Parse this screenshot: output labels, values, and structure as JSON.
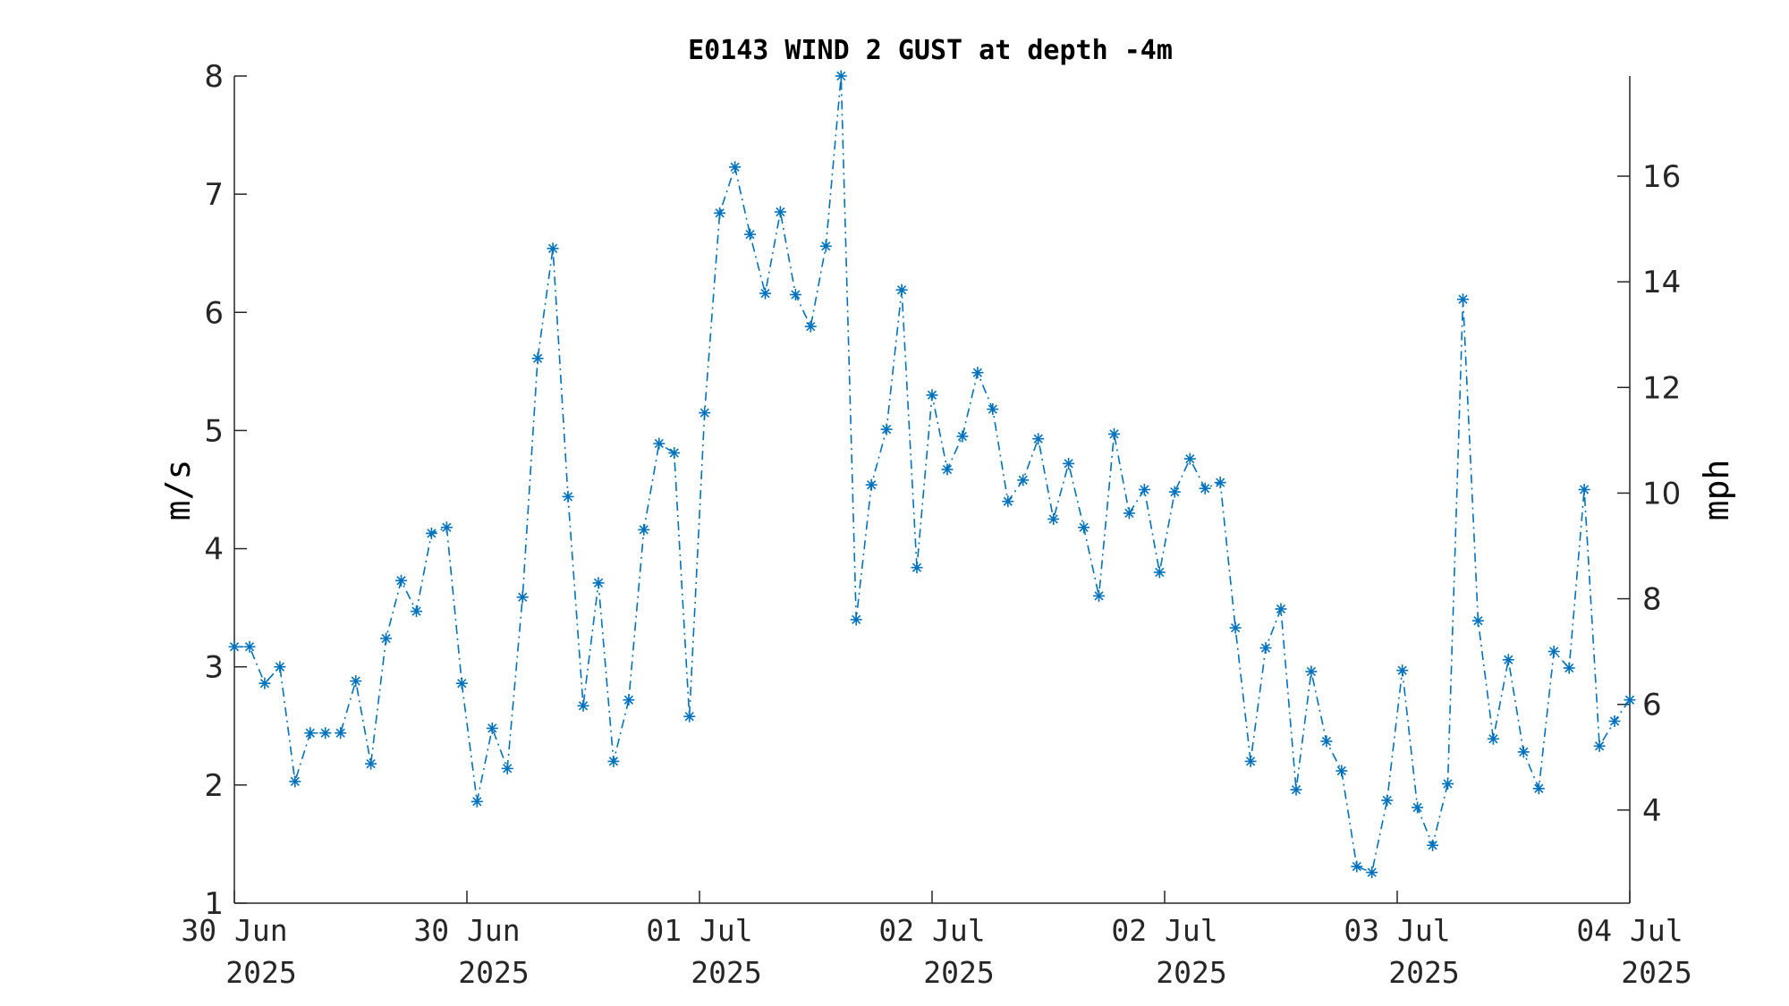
{
  "chart_data": {
    "type": "line",
    "title": "E0143 WIND 2 GUST at depth -4m",
    "ylabel": "m/s",
    "ylabel_right": "mph",
    "ylim": [
      1,
      8
    ],
    "yticks": [
      1,
      2,
      3,
      4,
      5,
      6,
      7,
      8
    ],
    "ylim_right": [
      2.237,
      17.896
    ],
    "yticks_right": [
      4,
      6,
      8,
      10,
      12,
      14,
      16
    ],
    "xticks": [
      {
        "day": "30 Jun",
        "year": "2025"
      },
      {
        "day": "30 Jun",
        "year": "2025"
      },
      {
        "day": "01 Jul",
        "year": "2025"
      },
      {
        "day": "02 Jul",
        "year": "2025"
      },
      {
        "day": "02 Jul",
        "year": "2025"
      },
      {
        "day": "03 Jul",
        "year": "2025"
      },
      {
        "day": "04 Jul",
        "year": "2025"
      }
    ],
    "grid": false,
    "marker": "asterisk",
    "line_style": "dash-dot",
    "color": "#0072BD",
    "series": [
      {
        "values": [
          3.17,
          3.17,
          2.86,
          3.0,
          2.03,
          2.44,
          2.44,
          2.44,
          2.88,
          2.18,
          3.24,
          3.73,
          3.47,
          4.13,
          4.18,
          2.86,
          1.86,
          2.48,
          2.14,
          3.59,
          5.61,
          6.54,
          4.44,
          2.67,
          3.71,
          2.2,
          2.72,
          4.16,
          4.89,
          4.81,
          2.58,
          5.15,
          6.84,
          7.23,
          6.66,
          6.16,
          6.85,
          6.15,
          5.88,
          6.56,
          8.0,
          3.4,
          4.54,
          5.01,
          6.19,
          3.84,
          5.3,
          4.67,
          4.95,
          5.49,
          5.18,
          4.4,
          4.58,
          4.93,
          4.25,
          4.72,
          4.18,
          3.6,
          4.97,
          4.3,
          4.5,
          3.8,
          4.48,
          4.76,
          4.51,
          4.56,
          3.33,
          2.2,
          3.16,
          3.49,
          1.96,
          2.96,
          2.37,
          2.12,
          1.31,
          1.26,
          1.87,
          2.97,
          1.81,
          1.49,
          2.01,
          6.11,
          3.39,
          2.39,
          3.06,
          2.28,
          1.97,
          3.13,
          2.99,
          4.5,
          2.33,
          2.54,
          2.72
        ]
      }
    ]
  }
}
